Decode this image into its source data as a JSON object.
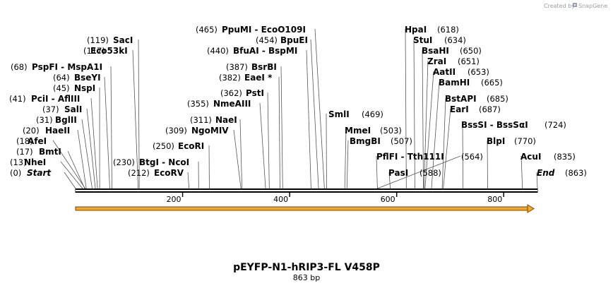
{
  "title": "pEYFP-N1-hRIP3-FL V458P",
  "length_label": "863 bp",
  "brand": {
    "prefix": "Created by",
    "name": "SnapGene"
  },
  "sequence": {
    "start": 0,
    "end": 863,
    "ticks": [
      200,
      400,
      600,
      800
    ]
  },
  "colors": {
    "backbone": "#000000",
    "feature": "#f0a830",
    "feature_edge": "#7a4a00",
    "leader": "#555555"
  },
  "sites": [
    {
      "id": "start",
      "pos": "(0)",
      "name": "Start",
      "bp": 0,
      "italic": true
    },
    {
      "id": "nhei",
      "pos": "(13)",
      "name": "NheI",
      "bp": 13
    },
    {
      "id": "bmti",
      "pos": "(17)",
      "name": "BmtI",
      "bp": 17
    },
    {
      "id": "afei",
      "pos": "(18)",
      "name": "AfeI",
      "bp": 18
    },
    {
      "id": "haeii",
      "pos": "(20)",
      "name": "HaeII",
      "bp": 20
    },
    {
      "id": "bglii",
      "pos": "(31)",
      "name": "BglII",
      "bp": 31
    },
    {
      "id": "sali",
      "pos": "(37)",
      "name": "SalI",
      "bp": 37
    },
    {
      "id": "pcii",
      "pos": "(41)",
      "name": "PciI  - AflIII",
      "bp": 41
    },
    {
      "id": "nspi",
      "pos": "(45)",
      "name": "NspI",
      "bp": 45
    },
    {
      "id": "bseyi",
      "pos": "(64)",
      "name": "BseYI",
      "bp": 64
    },
    {
      "id": "pspfi",
      "pos": "(68)",
      "name": "PspFI  - MspA1I",
      "bp": 68
    },
    {
      "id": "eco53ki",
      "pos": "(117)",
      "name": "Eco53kI",
      "bp": 117
    },
    {
      "id": "saci",
      "pos": "(119)",
      "name": "SacI",
      "bp": 119
    },
    {
      "id": "ecorv",
      "pos": "(212)",
      "name": "EcoRV",
      "bp": 212
    },
    {
      "id": "btgi",
      "pos": "(230)",
      "name": "BtgI  - NcoI",
      "bp": 230
    },
    {
      "id": "ecori",
      "pos": "(250)",
      "name": "EcoRI",
      "bp": 250
    },
    {
      "id": "ngomiv",
      "pos": "(309)",
      "name": "NgoMIV",
      "bp": 309
    },
    {
      "id": "naei",
      "pos": "(311)",
      "name": "NaeI",
      "bp": 311
    },
    {
      "id": "nmeaiii",
      "pos": "(355)",
      "name": "NmeAIII",
      "bp": 355
    },
    {
      "id": "psti",
      "pos": "(362)",
      "name": "PstI",
      "bp": 362
    },
    {
      "id": "eaei",
      "pos": "(382)",
      "name": "EaeI *",
      "bp": 382
    },
    {
      "id": "bsrbi",
      "pos": "(387)",
      "name": "BsrBI",
      "bp": 387
    },
    {
      "id": "bfuai",
      "pos": "(440)",
      "name": "BfuAI  - BspMI",
      "bp": 440
    },
    {
      "id": "bpuei",
      "pos": "(454)",
      "name": "BpuEI",
      "bp": 454
    },
    {
      "id": "ppumi",
      "pos": "(465)",
      "name": "PpuMI  - EcoO109I",
      "bp": 465
    },
    {
      "id": "smli",
      "pos": "(469)",
      "name": "SmlI",
      "bp": 469
    },
    {
      "id": "mmei",
      "pos": "(503)",
      "name": "MmeI",
      "bp": 503
    },
    {
      "id": "bmgbi",
      "pos": "(507)",
      "name": "BmgBI",
      "bp": 507
    },
    {
      "id": "pflfi",
      "pos": "",
      "name": "PflFI  - Tth111I",
      "bp": 564
    },
    {
      "id": "pasi",
      "pos": "(588)",
      "name": "PasI",
      "bp": 588
    },
    {
      "id": "hpai",
      "pos": "(618)",
      "name": "HpaI",
      "bp": 618
    },
    {
      "id": "stui",
      "pos": "(634)",
      "name": "StuI",
      "bp": 634
    },
    {
      "id": "bsahi",
      "pos": "(650)",
      "name": "BsaHI",
      "bp": 650
    },
    {
      "id": "zrai",
      "pos": "(651)",
      "name": "ZraI",
      "bp": 651
    },
    {
      "id": "aatii",
      "pos": "(653)",
      "name": "AatII",
      "bp": 653
    },
    {
      "id": "bamhi",
      "pos": "(665)",
      "name": "BamHI",
      "bp": 665
    },
    {
      "id": "bstapi",
      "pos": "(685)",
      "name": "BstAPI",
      "bp": 685
    },
    {
      "id": "eari",
      "pos": "(687)",
      "name": "EarI",
      "bp": 687
    },
    {
      "id": "tth111i_pos",
      "pos": "(564)",
      "name": "",
      "bp": 564
    },
    {
      "id": "bsssi",
      "pos": "(724)",
      "name": "BssSI  - BssSαI",
      "bp": 724
    },
    {
      "id": "blpi",
      "pos": "(770)",
      "name": "BlpI",
      "bp": 770
    },
    {
      "id": "acui",
      "pos": "(835)",
      "name": "AcuI",
      "bp": 835
    },
    {
      "id": "end",
      "pos": "(863)",
      "name": "End",
      "bp": 863,
      "italic": true
    }
  ]
}
